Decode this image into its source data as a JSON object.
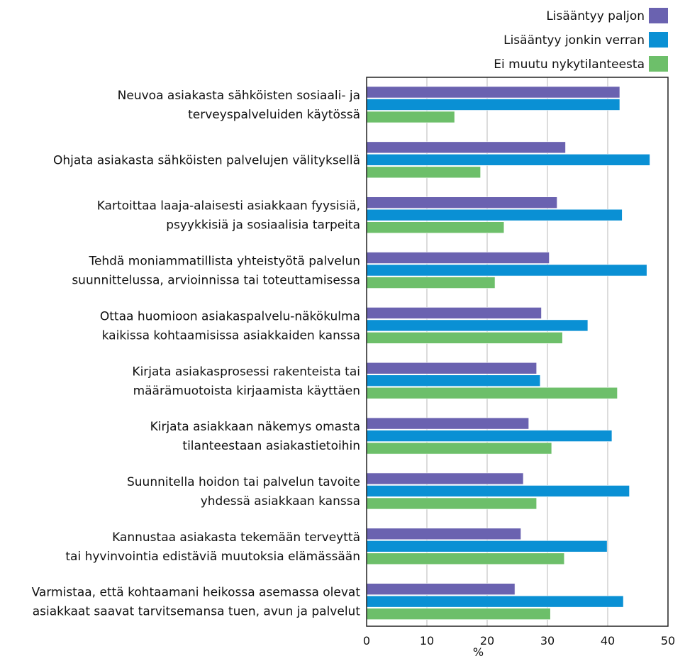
{
  "chart_data": {
    "type": "bar",
    "orientation": "horizontal",
    "xlabel": "%",
    "xlim": [
      0,
      50
    ],
    "xticks": [
      0,
      10,
      20,
      30,
      40,
      50
    ],
    "grid": true,
    "legend_position": "top-right",
    "categories": [
      [
        "Neuvoa asiakasta sähköisten sosiaali- ja",
        "terveyspalveluiden käytössä"
      ],
      [
        "Ohjata asiakasta sähköisten palvelujen välityksellä"
      ],
      [
        "Kartoittaa laaja-alaisesti asiakkaan fyysisiä,",
        "psyykkisiä ja sosiaalisia tarpeita"
      ],
      [
        "Tehdä moniammatillista yhteistyötä palvelun",
        "suunnittelussa, arvioinnissa tai toteuttamisessa"
      ],
      [
        "Ottaa huomioon asiakaspalvelu-näkökulma",
        "kaikissa kohtaamisissa asiakkaiden kanssa"
      ],
      [
        "Kirjata asiakasprosessi rakenteista tai",
        "määrämuotoista kirjaamista käyttäen"
      ],
      [
        "Kirjata asiakkaan näkemys omasta",
        "tilanteestaan asiakastietoihin"
      ],
      [
        "Suunnitella hoidon tai palvelun tavoite",
        "yhdessä asiakkaan kanssa"
      ],
      [
        "Kannustaa asiakasta tekemään terveyttä",
        "tai hyvinvointia edistäviä muutoksia elämässään"
      ],
      [
        "Varmistaa, että kohtaamani heikossa asemassa olevat",
        "asiakkaat saavat tarvitsemansa tuen, avun ja palvelut"
      ]
    ],
    "series": [
      {
        "name": "Lisääntyy paljon",
        "color": "#6a62b0",
        "values": [
          42.0,
          33.0,
          31.6,
          30.3,
          29.0,
          28.2,
          26.9,
          26.0,
          25.6,
          24.6
        ]
      },
      {
        "name": "Lisääntyy jonkin verran",
        "color": "#0a90d4",
        "values": [
          42.0,
          47.0,
          42.4,
          46.5,
          36.7,
          28.8,
          40.7,
          43.6,
          39.9,
          42.6
        ]
      },
      {
        "name": "Ei muutu nykytilanteesta",
        "color": "#6dbf6a",
        "values": [
          14.6,
          18.9,
          22.8,
          21.3,
          32.5,
          41.6,
          30.7,
          28.2,
          32.8,
          30.5
        ]
      }
    ]
  }
}
